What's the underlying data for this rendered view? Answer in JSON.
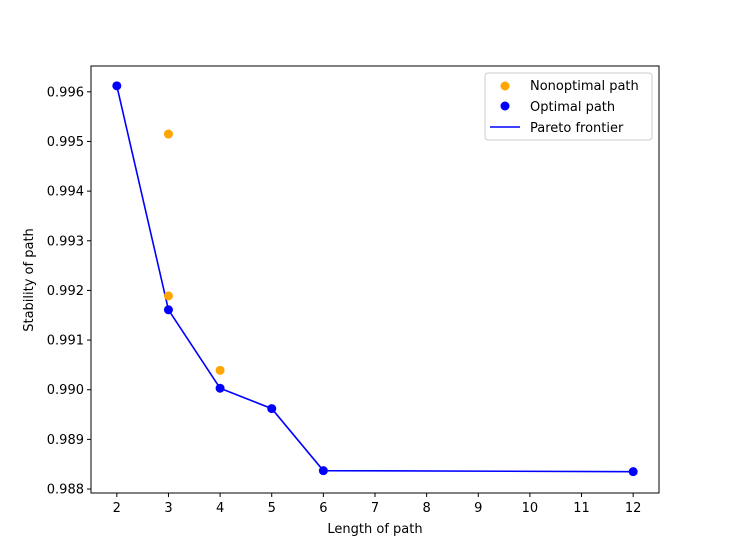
{
  "chart_data": {
    "type": "scatter",
    "title": "",
    "xlabel": "Length of path",
    "ylabel": "Stability of path",
    "xlim": [
      1.5,
      12.5
    ],
    "ylim": [
      0.98792,
      0.99652
    ],
    "xticks": [
      2,
      3,
      4,
      5,
      6,
      7,
      8,
      9,
      10,
      11,
      12
    ],
    "yticks": [
      0.988,
      0.989,
      0.99,
      0.991,
      0.992,
      0.993,
      0.994,
      0.995,
      0.996
    ],
    "ytick_labels": [
      "0.988",
      "0.989",
      "0.990",
      "0.991",
      "0.992",
      "0.993",
      "0.994",
      "0.995",
      "0.996"
    ],
    "grid": false,
    "legend_position": "upper right",
    "series": [
      {
        "name": "Nonoptimal path",
        "kind": "scatter",
        "color": "#FFA500",
        "points": [
          [
            3,
            0.99515
          ],
          [
            3,
            0.99189
          ],
          [
            4,
            0.99039
          ]
        ]
      },
      {
        "name": "Optimal path",
        "kind": "scatter",
        "color": "#0000FF",
        "points": [
          [
            2,
            0.99612
          ],
          [
            3,
            0.99161
          ],
          [
            4,
            0.99003
          ],
          [
            5,
            0.98962
          ],
          [
            6,
            0.98837
          ],
          [
            12,
            0.98835
          ]
        ]
      },
      {
        "name": "Pareto frontier",
        "kind": "line",
        "color": "#0000FF",
        "points": [
          [
            2,
            0.99612
          ],
          [
            3,
            0.99161
          ],
          [
            4,
            0.99003
          ],
          [
            5,
            0.98962
          ],
          [
            6,
            0.98837
          ],
          [
            12,
            0.98835
          ]
        ]
      }
    ]
  }
}
